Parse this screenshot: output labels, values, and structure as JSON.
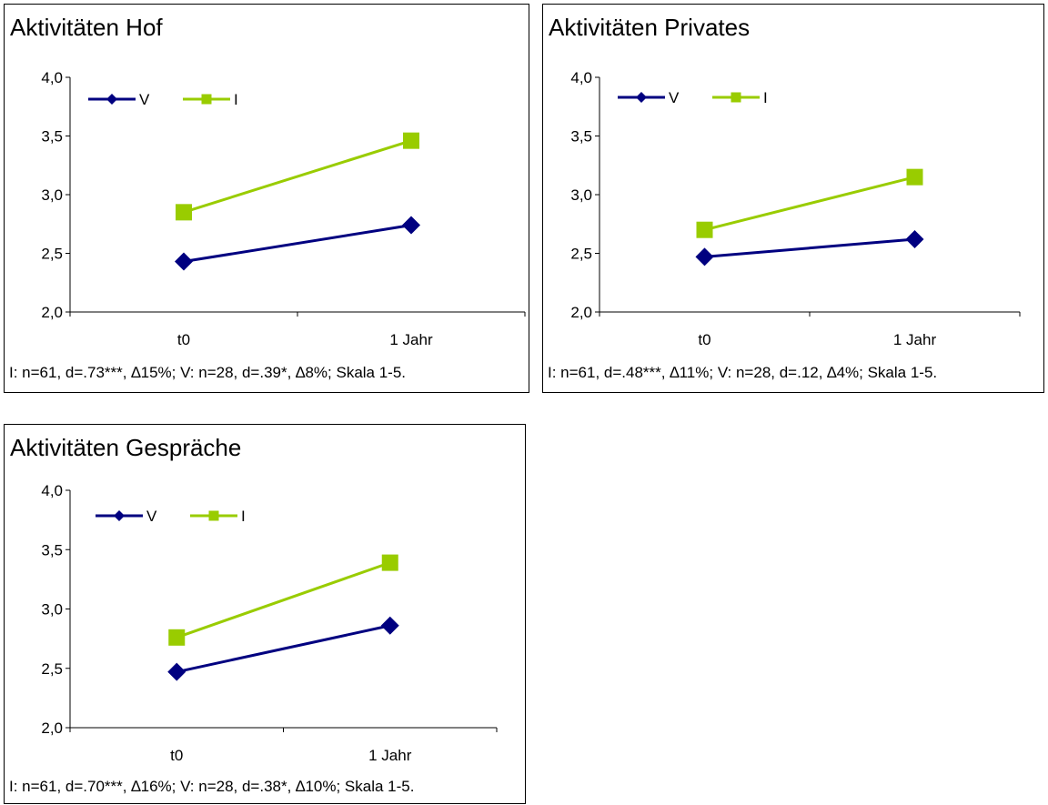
{
  "chart_data": [
    {
      "type": "line",
      "title": "Aktivitäten Hof",
      "categories": [
        "t0",
        "1 Jahr"
      ],
      "series": [
        {
          "name": "V",
          "values": [
            2.43,
            2.74
          ],
          "color": "#000080",
          "marker": "diamond"
        },
        {
          "name": "I",
          "values": [
            2.85,
            3.46
          ],
          "color": "#99CC00",
          "marker": "square"
        }
      ],
      "ylim": [
        2.0,
        4.0
      ],
      "yticks": [
        "2,0",
        "2,5",
        "3,0",
        "3,5",
        "4,0"
      ],
      "legend": "top-left",
      "grid": false,
      "footnote": "I: n=61, d=.73***, ∆15%;  V: n=28, d=.39*, ∆8%;  Skala 1-5."
    },
    {
      "type": "line",
      "title": "Aktivitäten Privates",
      "categories": [
        "t0",
        "1 Jahr"
      ],
      "series": [
        {
          "name": "V",
          "values": [
            2.47,
            2.62
          ],
          "color": "#000080",
          "marker": "diamond"
        },
        {
          "name": "I",
          "values": [
            2.7,
            3.15
          ],
          "color": "#99CC00",
          "marker": "square"
        }
      ],
      "ylim": [
        2.0,
        4.0
      ],
      "yticks": [
        "2,0",
        "2,5",
        "3,0",
        "3,5",
        "4,0"
      ],
      "legend": "top-left",
      "grid": false,
      "footnote": "I: n=61, d=.48***, ∆11%;  V: n=28, d=.12, ∆4%;  Skala 1-5."
    },
    {
      "type": "line",
      "title": "Aktivitäten Gespräche",
      "categories": [
        "t0",
        "1 Jahr"
      ],
      "series": [
        {
          "name": "V",
          "values": [
            2.47,
            2.86
          ],
          "color": "#000080",
          "marker": "diamond"
        },
        {
          "name": "I",
          "values": [
            2.76,
            3.39
          ],
          "color": "#99CC00",
          "marker": "square"
        }
      ],
      "ylim": [
        2.0,
        4.0
      ],
      "yticks": [
        "2,0",
        "2,5",
        "3,0",
        "3,5",
        "4,0"
      ],
      "legend": "top-left",
      "grid": false,
      "footnote": "I: n=61, d=.70***, ∆16%; V: n=28, d=.38*, ∆10%; Skala 1-5."
    }
  ]
}
